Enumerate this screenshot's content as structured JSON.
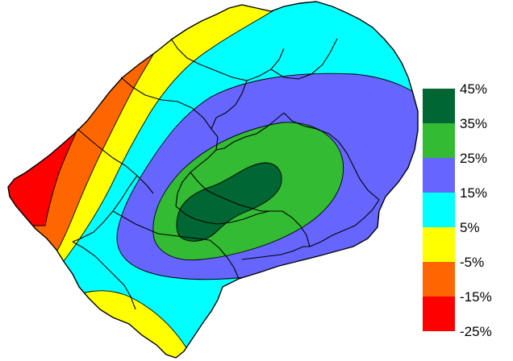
{
  "legend": {
    "labels": [
      "45%",
      "35%",
      "25%",
      "15%",
      "5%",
      "-5%",
      "-15%",
      "-25%"
    ],
    "bands": [
      {
        "color": "#006633"
      },
      {
        "color": "#33bb33"
      },
      {
        "color": "#6666ff"
      },
      {
        "color": "#00ffff"
      },
      {
        "color": "#ffff00"
      },
      {
        "color": "#ff6600"
      },
      {
        "color": "#ff0000"
      }
    ]
  },
  "colors": {
    "dark_green": "#006633",
    "green": "#33bb33",
    "blue": "#6666ff",
    "cyan": "#00ffff",
    "yellow": "#ffff00",
    "orange": "#ff6600",
    "red": "#ff0000",
    "outline": "#000000"
  }
}
